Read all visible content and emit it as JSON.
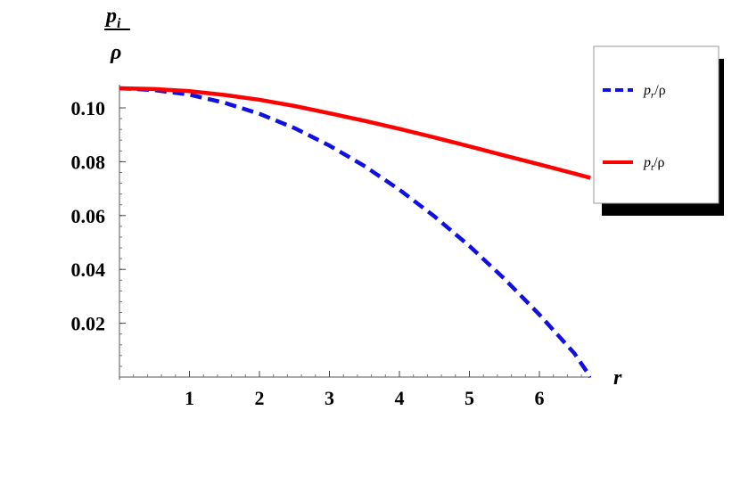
{
  "chart_data": {
    "type": "line",
    "xlabel": "r",
    "ylabel_num": "p",
    "ylabel_sub": "i",
    "ylabel_den": "ρ",
    "xlim": [
      0,
      6.75
    ],
    "ylim": [
      0,
      0.1
    ],
    "xticks": [
      {
        "value": 1,
        "label": "1"
      },
      {
        "value": 2,
        "label": "2"
      },
      {
        "value": 3,
        "label": "3"
      },
      {
        "value": 4,
        "label": "4"
      },
      {
        "value": 5,
        "label": "5"
      },
      {
        "value": 6,
        "label": "6"
      }
    ],
    "yticks": [
      {
        "value": 0.02,
        "label": "0.02"
      },
      {
        "value": 0.04,
        "label": "0.04"
      },
      {
        "value": 0.06,
        "label": "0.06"
      },
      {
        "value": 0.08,
        "label": "0.08"
      },
      {
        "value": 0.1,
        "label": "0.10"
      }
    ],
    "legend_position": "top-right",
    "series": [
      {
        "name": "p_r/ρ",
        "legend_main": "p",
        "legend_sub": "r",
        "legend_rest": "/ρ",
        "color": "#1010e0",
        "dash": "dashed",
        "x": [
          0,
          0.5,
          1,
          1.5,
          2,
          2.5,
          3,
          3.5,
          4,
          4.5,
          5,
          5.5,
          6,
          6.5,
          6.73
        ],
        "y": [
          0.1073,
          0.1066,
          0.1049,
          0.1019,
          0.0978,
          0.0925,
          0.086,
          0.0784,
          0.0696,
          0.0597,
          0.0487,
          0.0365,
          0.0232,
          0.0088,
          0.0
        ]
      },
      {
        "name": "p_t/ρ",
        "legend_main": "p",
        "legend_sub": "t",
        "legend_rest": "/ρ",
        "color": "#ff0000",
        "dash": "solid",
        "x": [
          0,
          0.5,
          1,
          1.5,
          2,
          2.5,
          3,
          3.5,
          4,
          4.5,
          5,
          5.5,
          6,
          6.5,
          6.73
        ],
        "y": [
          0.1073,
          0.107,
          0.1062,
          0.1048,
          0.103,
          0.1007,
          0.098,
          0.0952,
          0.0922,
          0.089,
          0.0857,
          0.0823,
          0.079,
          0.0756,
          0.074
        ]
      }
    ]
  }
}
